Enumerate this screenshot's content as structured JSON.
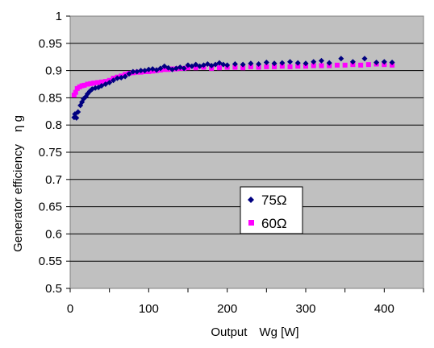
{
  "chart_data": {
    "type": "scatter",
    "xlabel": "Output　Wg [W]",
    "ylabel": "Generator efficiency　η g",
    "xlim": [
      0,
      450
    ],
    "ylim": [
      0.5,
      1
    ],
    "x_ticks": [
      "0",
      "100",
      "200",
      "300",
      "400"
    ],
    "y_ticks": [
      "0.5",
      "0.55",
      "0.6",
      "0.65",
      "0.7",
      "0.75",
      "0.8",
      "0.85",
      "0.9",
      "0.95",
      "1"
    ],
    "grid": "horizontal",
    "legend_position": "center-right",
    "plot_background": "#c0c0c0",
    "series": [
      {
        "name": "75Ω",
        "marker": "diamond",
        "color": "#000080",
        "points": [
          [
            5,
            0.814
          ],
          [
            6,
            0.82
          ],
          [
            8,
            0.813
          ],
          [
            10,
            0.824
          ],
          [
            13,
            0.836
          ],
          [
            15,
            0.842
          ],
          [
            17,
            0.848
          ],
          [
            20,
            0.852
          ],
          [
            22,
            0.857
          ],
          [
            25,
            0.862
          ],
          [
            28,
            0.866
          ],
          [
            32,
            0.868
          ],
          [
            36,
            0.869
          ],
          [
            40,
            0.872
          ],
          [
            45,
            0.875
          ],
          [
            50,
            0.878
          ],
          [
            55,
            0.882
          ],
          [
            60,
            0.886
          ],
          [
            65,
            0.887
          ],
          [
            70,
            0.889
          ],
          [
            75,
            0.894
          ],
          [
            80,
            0.898
          ],
          [
            85,
            0.898
          ],
          [
            90,
            0.9
          ],
          [
            95,
            0.9
          ],
          [
            100,
            0.902
          ],
          [
            105,
            0.903
          ],
          [
            110,
            0.901
          ],
          [
            115,
            0.904
          ],
          [
            120,
            0.908
          ],
          [
            125,
            0.905
          ],
          [
            130,
            0.902
          ],
          [
            135,
            0.904
          ],
          [
            140,
            0.906
          ],
          [
            145,
            0.904
          ],
          [
            150,
            0.91
          ],
          [
            155,
            0.908
          ],
          [
            160,
            0.911
          ],
          [
            165,
            0.908
          ],
          [
            170,
            0.91
          ],
          [
            175,
            0.912
          ],
          [
            180,
            0.909
          ],
          [
            185,
            0.911
          ],
          [
            190,
            0.914
          ],
          [
            195,
            0.911
          ],
          [
            200,
            0.91
          ],
          [
            210,
            0.912
          ],
          [
            220,
            0.911
          ],
          [
            230,
            0.913
          ],
          [
            240,
            0.912
          ],
          [
            250,
            0.915
          ],
          [
            260,
            0.913
          ],
          [
            270,
            0.914
          ],
          [
            280,
            0.916
          ],
          [
            290,
            0.914
          ],
          [
            300,
            0.913
          ],
          [
            310,
            0.916
          ],
          [
            320,
            0.918
          ],
          [
            330,
            0.914
          ],
          [
            345,
            0.922
          ],
          [
            360,
            0.916
          ],
          [
            375,
            0.922
          ],
          [
            390,
            0.915
          ],
          [
            400,
            0.916
          ],
          [
            410,
            0.915
          ]
        ]
      },
      {
        "name": "60Ω",
        "marker": "square",
        "color": "#ff00ff",
        "points": [
          [
            5,
            0.855
          ],
          [
            7,
            0.86
          ],
          [
            9,
            0.867
          ],
          [
            12,
            0.87
          ],
          [
            15,
            0.872
          ],
          [
            18,
            0.873
          ],
          [
            22,
            0.875
          ],
          [
            26,
            0.876
          ],
          [
            30,
            0.877
          ],
          [
            35,
            0.878
          ],
          [
            40,
            0.879
          ],
          [
            45,
            0.88
          ],
          [
            50,
            0.882
          ],
          [
            55,
            0.886
          ],
          [
            60,
            0.888
          ],
          [
            65,
            0.89
          ],
          [
            70,
            0.893
          ],
          [
            75,
            0.895
          ],
          [
            80,
            0.896
          ],
          [
            85,
            0.897
          ],
          [
            90,
            0.897
          ],
          [
            95,
            0.898
          ],
          [
            100,
            0.898
          ],
          [
            105,
            0.899
          ],
          [
            110,
            0.9
          ],
          [
            115,
            0.901
          ],
          [
            120,
            0.902
          ],
          [
            125,
            0.902
          ],
          [
            130,
            0.903
          ],
          [
            135,
            0.903
          ],
          [
            140,
            0.904
          ],
          [
            145,
            0.904
          ],
          [
            150,
            0.905
          ],
          [
            160,
            0.905
          ],
          [
            170,
            0.906
          ],
          [
            180,
            0.904
          ],
          [
            190,
            0.905
          ],
          [
            200,
            0.906
          ],
          [
            210,
            0.906
          ],
          [
            220,
            0.905
          ],
          [
            230,
            0.907
          ],
          [
            240,
            0.906
          ],
          [
            250,
            0.907
          ],
          [
            260,
            0.907
          ],
          [
            270,
            0.908
          ],
          [
            280,
            0.907
          ],
          [
            290,
            0.908
          ],
          [
            300,
            0.908
          ],
          [
            310,
            0.909
          ],
          [
            320,
            0.909
          ],
          [
            330,
            0.909
          ],
          [
            340,
            0.91
          ],
          [
            350,
            0.91
          ],
          [
            360,
            0.911
          ],
          [
            370,
            0.91
          ],
          [
            380,
            0.911
          ],
          [
            390,
            0.912
          ],
          [
            400,
            0.911
          ],
          [
            410,
            0.91
          ]
        ]
      }
    ]
  }
}
